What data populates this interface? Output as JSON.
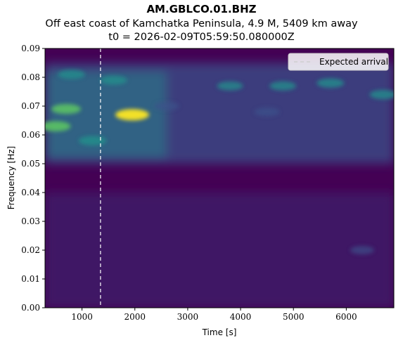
{
  "header": {
    "station": "AM.GBLCO.01.BHZ",
    "event": "Off east coast of Kamchatka Peninsula, 4.9 M, 5409 km away",
    "t0": "t0 = 2026-02-09T05:59:50.080000Z"
  },
  "chart_data": {
    "type": "heatmap",
    "title": "AM.GBLCO.01.BHZ",
    "xlabel": "Time [s]",
    "ylabel": "Frequency [Hz]",
    "xlim": [
      300,
      6900
    ],
    "ylim": [
      0.0,
      0.09
    ],
    "xticks": [
      1000,
      2000,
      3000,
      4000,
      5000,
      6000
    ],
    "yticks": [
      0.0,
      0.01,
      0.02,
      0.03,
      0.04,
      0.05,
      0.06,
      0.07,
      0.08,
      0.09
    ],
    "xtick_labels": [
      "1000",
      "2000",
      "3000",
      "4000",
      "5000",
      "6000"
    ],
    "ytick_labels": [
      "0.00",
      "0.01",
      "0.02",
      "0.03",
      "0.04",
      "0.05",
      "0.06",
      "0.07",
      "0.08",
      "0.09"
    ],
    "colormap": "viridis",
    "expected_arrival_s": 1350,
    "legend": {
      "label": "Expected arrival",
      "position": "top-right"
    },
    "grid": false,
    "hotspots": [
      {
        "t": 1950,
        "f": 0.067,
        "level": 1.0
      },
      {
        "t": 700,
        "f": 0.069,
        "level": 0.7
      },
      {
        "t": 500,
        "f": 0.063,
        "level": 0.75
      },
      {
        "t": 1200,
        "f": 0.058,
        "level": 0.6
      },
      {
        "t": 800,
        "f": 0.081,
        "level": 0.55
      },
      {
        "t": 1600,
        "f": 0.079,
        "level": 0.5
      },
      {
        "t": 3800,
        "f": 0.077,
        "level": 0.45
      },
      {
        "t": 4800,
        "f": 0.077,
        "level": 0.5
      },
      {
        "t": 5700,
        "f": 0.078,
        "level": 0.55
      },
      {
        "t": 6700,
        "f": 0.074,
        "level": 0.55
      },
      {
        "t": 4500,
        "f": 0.068,
        "level": 0.4
      },
      {
        "t": 2600,
        "f": 0.07,
        "level": 0.35
      },
      {
        "t": 6300,
        "f": 0.02,
        "level": 0.3
      }
    ],
    "colors": {
      "bg": "#440154",
      "lo": "#3b528b",
      "mid": "#21918c",
      "hi": "#5ec962",
      "top": "#fde725"
    }
  }
}
